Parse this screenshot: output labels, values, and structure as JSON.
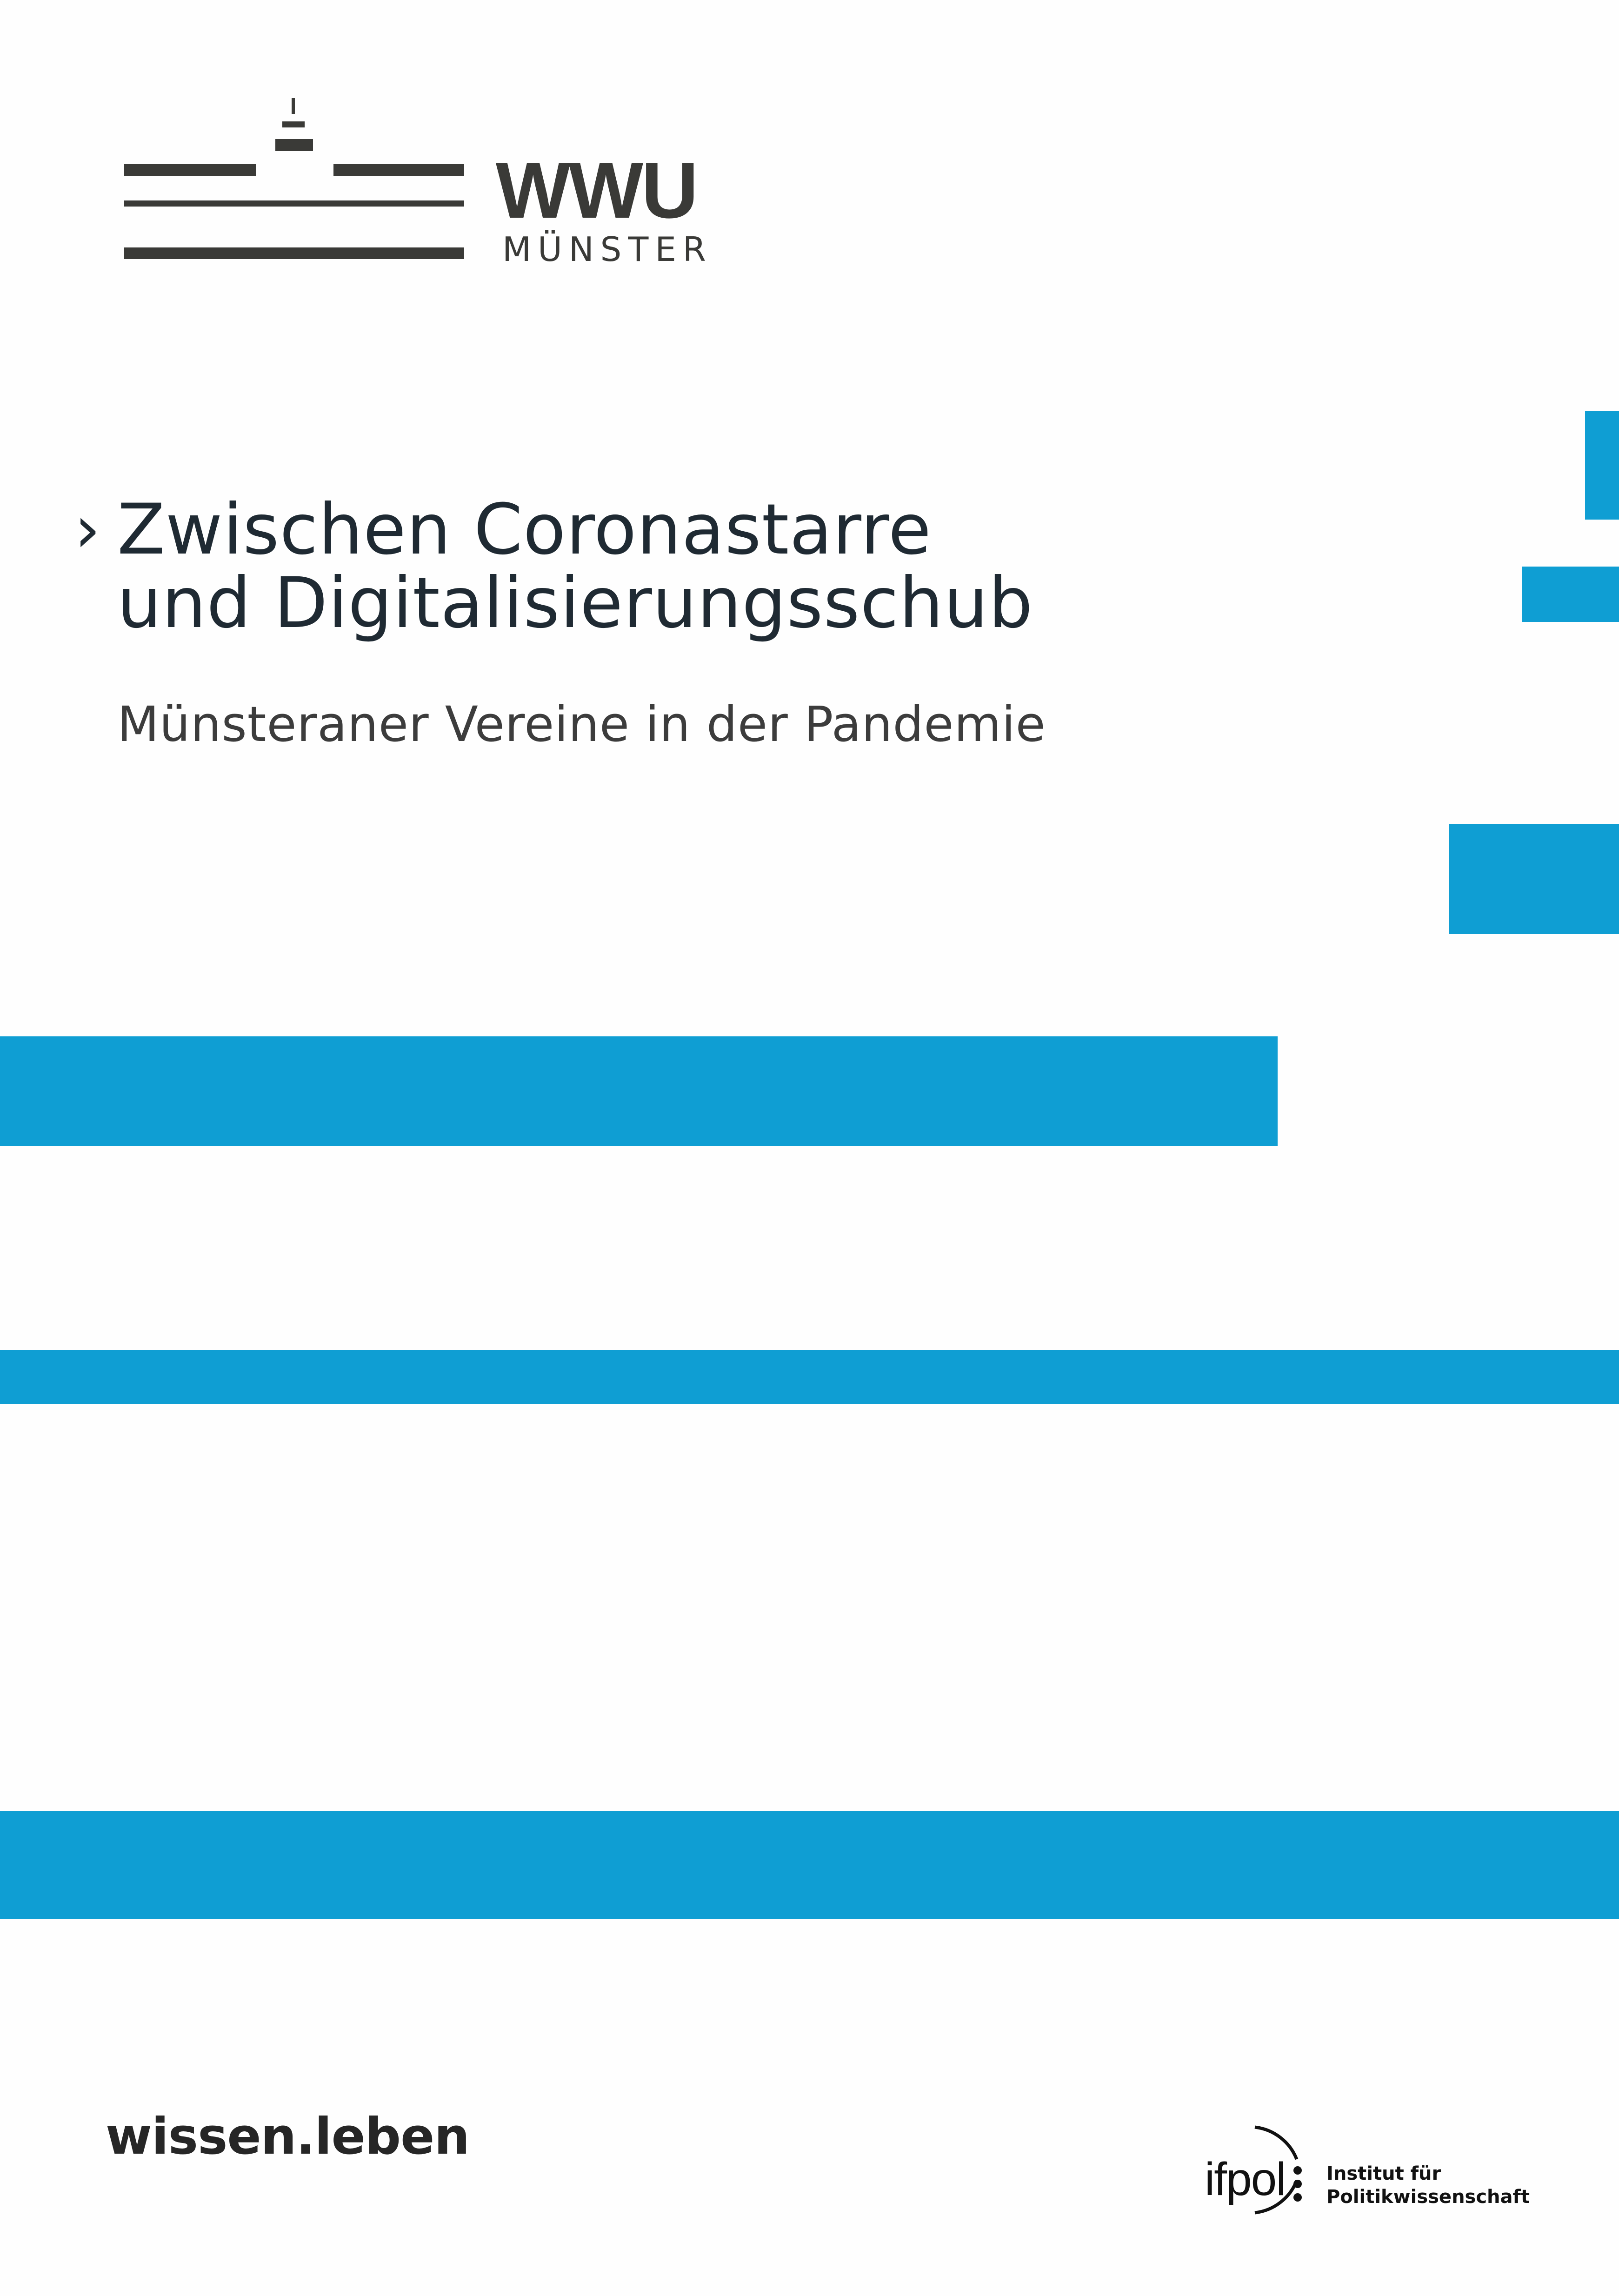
{
  "logo": {
    "wordmark": "WWU",
    "city": "MÜNSTER"
  },
  "title": {
    "chevron": "›",
    "line1": "Zwischen Coronastarre",
    "line2": "und Digitalisierungsschub"
  },
  "subtitle": "Münsteraner Vereine in der Pandemie",
  "footer": {
    "slogan": "wissen.leben",
    "institute_logo": {
      "mark": "ifpol",
      "line1": "Institut für",
      "line2": "Politikwissenschaft"
    }
  },
  "colors": {
    "accent": "#0f9ed3",
    "logo": "#3a3a37",
    "text": "#1f2a33"
  }
}
